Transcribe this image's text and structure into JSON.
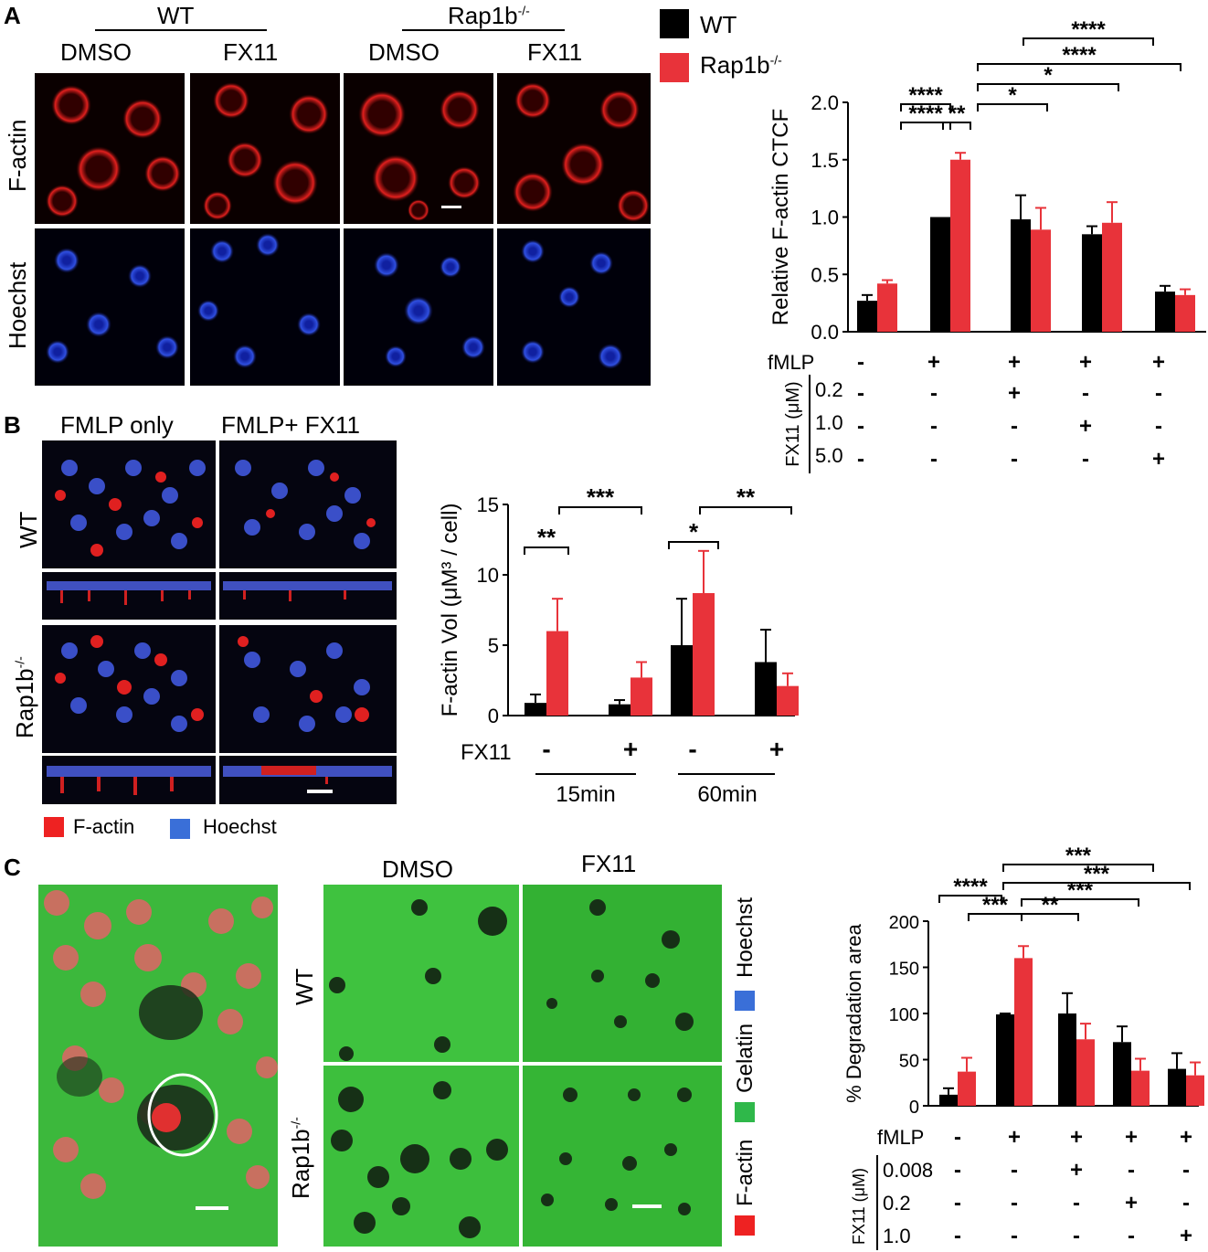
{
  "panels": {
    "a": {
      "label": "A",
      "group_wt": "WT",
      "group_rap": "Rap1b",
      "group_rap_sup": "-/-",
      "col_dmso_1": "DMSO",
      "col_fx11_1": "FX11",
      "col_dmso_2": "DMSO",
      "col_fx11_2": "FX11",
      "row_factin": "F-actin",
      "row_hoechst": "Hoechst"
    },
    "b": {
      "label": "B",
      "col_fmlp_only": "FMLP only",
      "col_fmlp_fx11": "FMLP+ FX11",
      "row_wt": "WT",
      "row_rap": "Rap1b",
      "row_rap_sup": "-/-",
      "legend_factin": "F-actin",
      "legend_hoechst": "Hoechst"
    },
    "c": {
      "label": "C",
      "col_dmso": "DMSO",
      "col_fx11": "FX11",
      "row_wt": "WT",
      "row_rap": "Rap1b",
      "row_rap_sup": "-/-",
      "legend_hoechst": "Hoechst",
      "legend_gelatin": "Gelatin",
      "legend_factin": "F-actin"
    }
  },
  "legend_top": {
    "wt": "WT",
    "rap": "Rap1b",
    "rap_sup": "-/-"
  },
  "colors": {
    "wt": "#000000",
    "rap": "#e8333a",
    "factin": "#ee2222",
    "hoechst": "#3a6fd8",
    "gelatin": "#2fb84a"
  },
  "chart_data": [
    {
      "type": "bar",
      "panel": "A",
      "ylabel": "Relative F-actin CTCF",
      "ylim": [
        0,
        2.0
      ],
      "yticks": [
        "0.0",
        "0.5",
        "1.0",
        "1.5",
        "2.0"
      ],
      "series": [
        {
          "name": "WT",
          "values": [
            0.27,
            1.0,
            0.98,
            0.85,
            0.35
          ],
          "errors": [
            0.05,
            0,
            0.21,
            0.07,
            0.05
          ]
        },
        {
          "name": "Rap1b-/-",
          "values": [
            0.42,
            1.5,
            0.89,
            0.95,
            0.32
          ],
          "errors": [
            0.03,
            0.06,
            0.19,
            0.18,
            0.05
          ]
        }
      ],
      "conditions": {
        "fmlp_label": "fMLP",
        "fmlp": [
          "-",
          "+",
          "+",
          "+",
          "+"
        ],
        "fx11_label": "FX11 (μM)",
        "fx11_rows": [
          {
            "dose": "0.2",
            "marks": [
              "-",
              "-",
              "+",
              "-",
              "-"
            ]
          },
          {
            "dose": "1.0",
            "marks": [
              "-",
              "-",
              "-",
              "+",
              "-"
            ]
          },
          {
            "dose": "5.0",
            "marks": [
              "-",
              "-",
              "-",
              "-",
              "+"
            ]
          }
        ]
      },
      "significance": [
        "****",
        "****",
        "*",
        "****",
        "****",
        "**",
        "****"
      ]
    },
    {
      "type": "bar",
      "panel": "B",
      "ylabel": "F-actin Vol (μM³ / cell)",
      "ylim": [
        0,
        15
      ],
      "yticks": [
        "0",
        "5",
        "10",
        "15"
      ],
      "series": [
        {
          "name": "WT",
          "values": [
            0.9,
            0.8,
            5.0,
            3.8
          ],
          "errors": [
            0.6,
            0.3,
            3.3,
            2.3
          ]
        },
        {
          "name": "Rap1b-/-",
          "values": [
            6.0,
            2.7,
            8.7,
            2.1
          ],
          "errors": [
            2.3,
            1.1,
            3.0,
            0.9
          ]
        }
      ],
      "conditions": {
        "fx11_label": "FX11",
        "fx11": [
          "-",
          "+",
          "-",
          "+"
        ],
        "groups": [
          "15min",
          "60min"
        ]
      },
      "significance": [
        "**",
        "***",
        "*",
        "**"
      ]
    },
    {
      "type": "bar",
      "panel": "C",
      "ylabel": "% Degradation area",
      "ylim": [
        0,
        200
      ],
      "yticks": [
        "0",
        "50",
        "100",
        "150",
        "200"
      ],
      "series": [
        {
          "name": "WT",
          "values": [
            12,
            99,
            100,
            69,
            40
          ],
          "errors": [
            7,
            1,
            22,
            17,
            17
          ]
        },
        {
          "name": "Rap1b-/-",
          "values": [
            37,
            160,
            72,
            38,
            33
          ],
          "errors": [
            15,
            13,
            17,
            13,
            14
          ]
        }
      ],
      "conditions": {
        "fmlp_label": "fMLP",
        "fmlp": [
          "-",
          "+",
          "+",
          "+",
          "+"
        ],
        "fx11_label": "FX11 (μM)",
        "fx11_rows": [
          {
            "dose": "0.008",
            "marks": [
              "-",
              "-",
              "+",
              "-",
              "-"
            ]
          },
          {
            "dose": "0.2",
            "marks": [
              "-",
              "-",
              "-",
              "+",
              "-"
            ]
          },
          {
            "dose": "1.0",
            "marks": [
              "-",
              "-",
              "-",
              "-",
              "+"
            ]
          }
        ]
      },
      "significance": [
        "****",
        "***",
        "**",
        "***",
        "***",
        "***"
      ]
    }
  ]
}
